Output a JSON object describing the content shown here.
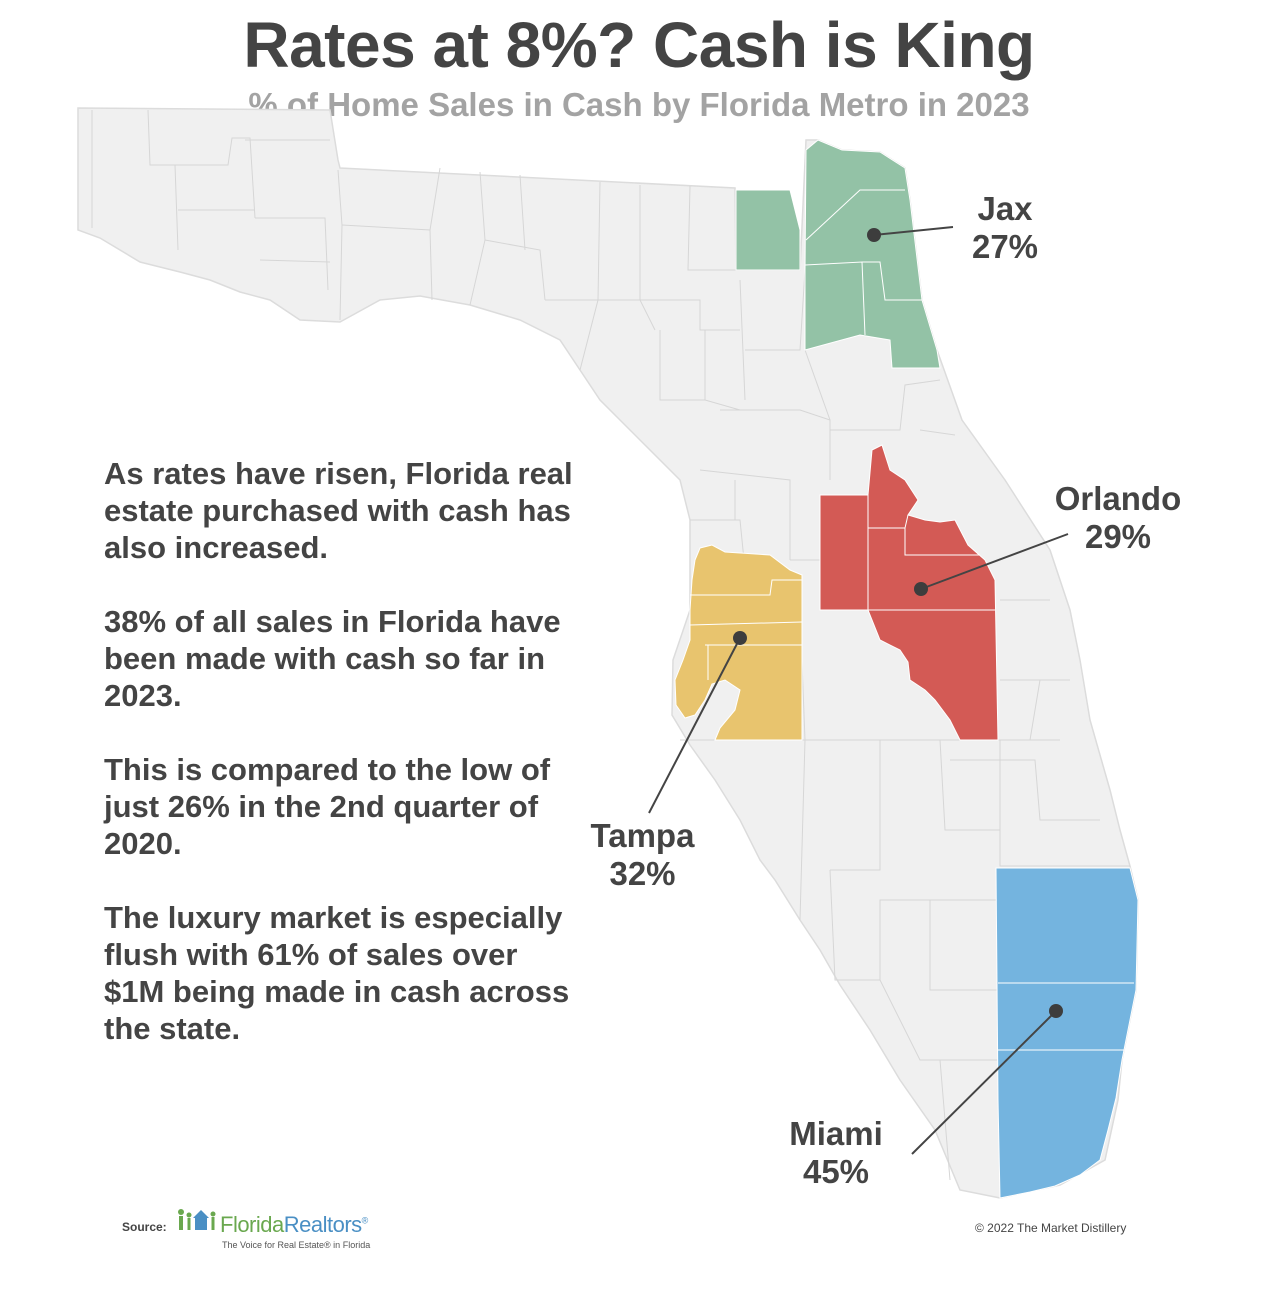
{
  "title": "Rates at 8%? Cash is King",
  "subtitle": "% of Home Sales in Cash by Florida Metro in 2023",
  "metros": {
    "jax": {
      "name": "Jax",
      "value": "27%",
      "color": "#93c2a6"
    },
    "orlando": {
      "name": "Orlando",
      "value": "29%",
      "color": "#d35a55"
    },
    "tampa": {
      "name": "Tampa",
      "value": "32%",
      "color": "#e8c46e"
    },
    "miami": {
      "name": "Miami",
      "value": "45%",
      "color": "#74b4df"
    }
  },
  "body": {
    "p1": "As rates have risen, Florida real estate purchased with cash has also increased.",
    "p2": "38% of all sales in Florida have been made with cash so far in 2023.",
    "p3": "This is compared to the low of just 26% in the 2nd quarter of 2020.",
    "p4": "The luxury market is especially flush with 61% of sales over $1M being made in cash across the state."
  },
  "footer": {
    "source_label": "Source:",
    "logo_first": "Florida",
    "logo_second": "Realtors",
    "logo_mark": "®",
    "logo_tagline": "The Voice for Real Estate® in Florida",
    "copyright": "© 2022 The Market Distillery"
  },
  "colors": {
    "state_fill": "#f0f0f0",
    "county_border": "#d6d6d6",
    "text": "#444444"
  }
}
